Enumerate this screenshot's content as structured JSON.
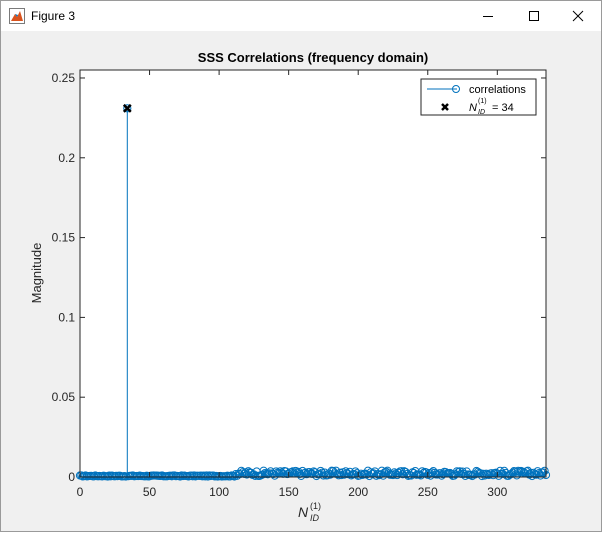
{
  "window": {
    "title": "Figure 3",
    "icons": {
      "app": "matlab-figure-icon",
      "minimize": "minimize-icon",
      "maximize": "maximize-icon",
      "close": "close-icon"
    }
  },
  "chart_data": {
    "type": "stem",
    "title": "SSS Correlations (frequency domain)",
    "xlabel_main": "N",
    "xlabel_sup": "(1)",
    "xlabel_sub": "ID",
    "ylabel": "Magnitude",
    "xlim": [
      0,
      335
    ],
    "ylim": [
      0,
      0.255
    ],
    "xticks": [
      0,
      50,
      100,
      150,
      200,
      250,
      300
    ],
    "yticks": [
      0,
      0.05,
      0.1,
      0.15,
      0.2,
      0.25
    ],
    "xtick_labels": [
      "0",
      "50",
      "100",
      "150",
      "200",
      "250",
      "300"
    ],
    "ytick_labels": [
      "0",
      "0.05",
      "0.1",
      "0.15",
      "0.2",
      "0.25"
    ],
    "series": [
      {
        "name": "correlations",
        "color": "#0072bd",
        "marker": "circle",
        "peak": {
          "x": 34,
          "y": 0.231
        },
        "baseline_range": [
          0,
          335
        ],
        "baseline_level": 0.001,
        "noise_range": [
          112,
          335
        ],
        "noise_max": 0.004
      },
      {
        "name_main": "N",
        "name_sup": "(1)",
        "name_sub": "ID",
        "name_suffix": "= 34",
        "color": "#000000",
        "marker": "x",
        "x": [
          34
        ],
        "y": [
          0.231
        ]
      }
    ],
    "legend_position": "top-right",
    "grid": false
  }
}
